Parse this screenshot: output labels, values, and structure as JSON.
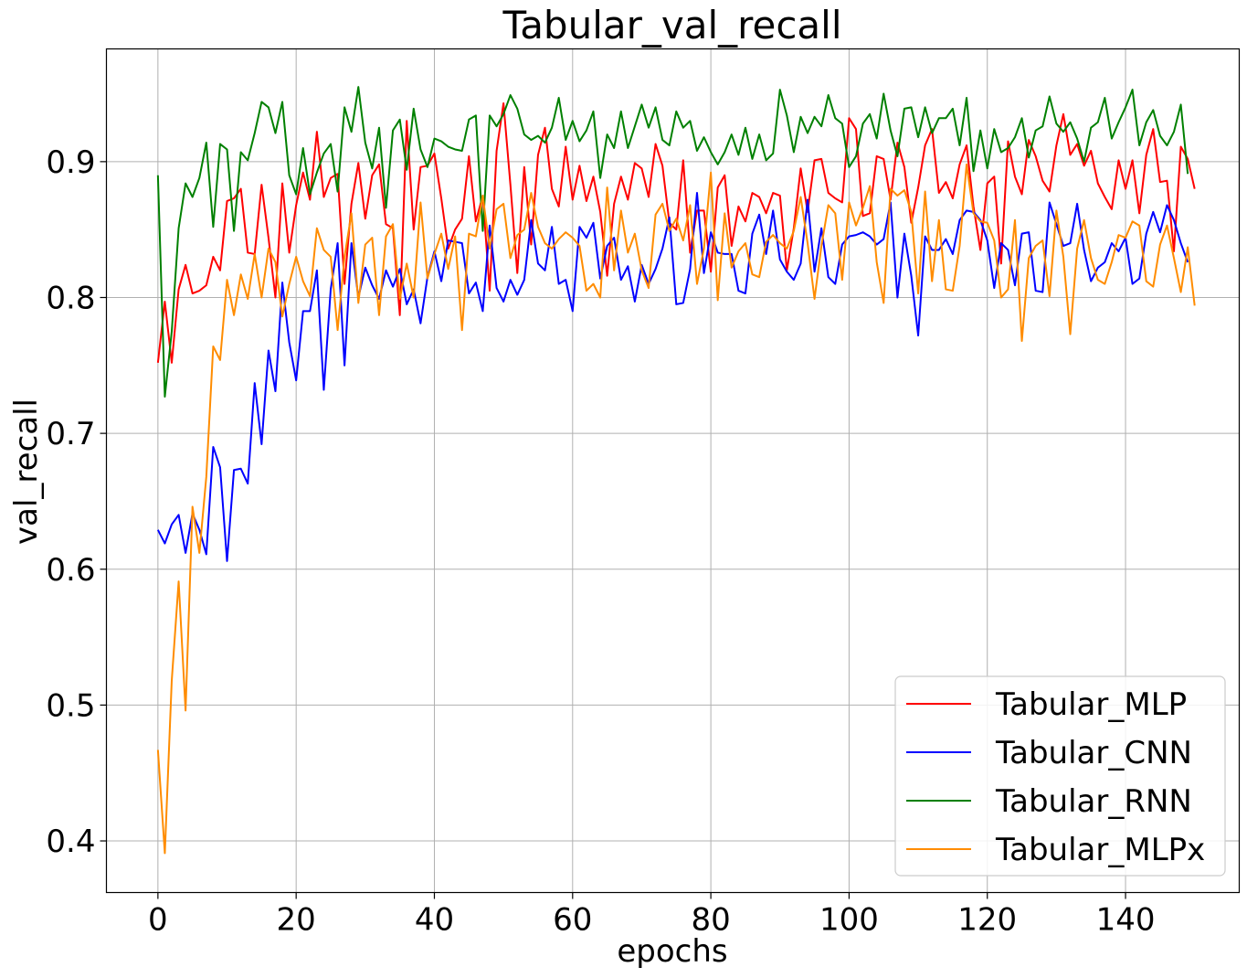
{
  "chart_data": {
    "type": "line",
    "title": "Tabular_val_recall",
    "xlabel": "epochs",
    "ylabel": "val_recall",
    "xlim": [
      -7.45,
      156.45
    ],
    "ylim": [
      0.362,
      0.983
    ],
    "xticks": [
      0,
      20,
      40,
      60,
      80,
      100,
      120,
      140
    ],
    "yticks": [
      0.4,
      0.5,
      0.6,
      0.7,
      0.8,
      0.9
    ],
    "ytick_labels": [
      "0.4",
      "0.5",
      "0.6",
      "0.7",
      "0.8",
      "0.9"
    ],
    "grid": true,
    "legend_position": "lower-right",
    "series": [
      {
        "name": "Tabular_MLP",
        "color": "#ff0000",
        "values": [
          0.752,
          0.797,
          0.752,
          0.806,
          0.824,
          0.803,
          0.805,
          0.809,
          0.83,
          0.82,
          0.871,
          0.873,
          0.88,
          0.833,
          0.832,
          0.883,
          0.844,
          0.8,
          0.884,
          0.833,
          0.868,
          0.892,
          0.872,
          0.922,
          0.874,
          0.888,
          0.891,
          0.81,
          0.869,
          0.899,
          0.858,
          0.89,
          0.898,
          0.854,
          0.851,
          0.787,
          0.93,
          0.85,
          0.896,
          0.897,
          0.906,
          0.873,
          0.836,
          0.85,
          0.858,
          0.904,
          0.856,
          0.875,
          0.805,
          0.908,
          0.943,
          0.883,
          0.818,
          0.896,
          0.839,
          0.905,
          0.925,
          0.88,
          0.867,
          0.911,
          0.872,
          0.897,
          0.871,
          0.889,
          0.863,
          0.816,
          0.869,
          0.889,
          0.872,
          0.899,
          0.895,
          0.874,
          0.913,
          0.897,
          0.855,
          0.85,
          0.901,
          0.833,
          0.864,
          0.864,
          0.819,
          0.881,
          0.89,
          0.838,
          0.867,
          0.856,
          0.877,
          0.874,
          0.862,
          0.877,
          0.875,
          0.82,
          0.851,
          0.895,
          0.863,
          0.901,
          0.902,
          0.877,
          0.873,
          0.87,
          0.932,
          0.924,
          0.86,
          0.862,
          0.904,
          0.902,
          0.872,
          0.914,
          0.896,
          0.855,
          0.881,
          0.912,
          0.924,
          0.877,
          0.885,
          0.873,
          0.898,
          0.912,
          0.867,
          0.835,
          0.884,
          0.889,
          0.825,
          0.915,
          0.889,
          0.876,
          0.916,
          0.904,
          0.886,
          0.878,
          0.912,
          0.935,
          0.905,
          0.913,
          0.897,
          0.908,
          0.884,
          0.874,
          0.865,
          0.901,
          0.88,
          0.901,
          0.862,
          0.905,
          0.924,
          0.885,
          0.886,
          0.834,
          0.911,
          0.902,
          0.88
        ]
      },
      {
        "name": "Tabular_CNN",
        "color": "#0000ff",
        "values": [
          0.629,
          0.619,
          0.633,
          0.64,
          0.612,
          0.641,
          0.629,
          0.611,
          0.69,
          0.675,
          0.606,
          0.673,
          0.674,
          0.663,
          0.737,
          0.692,
          0.761,
          0.731,
          0.811,
          0.767,
          0.739,
          0.79,
          0.79,
          0.82,
          0.732,
          0.806,
          0.84,
          0.75,
          0.84,
          0.8,
          0.822,
          0.809,
          0.799,
          0.82,
          0.808,
          0.821,
          0.795,
          0.806,
          0.781,
          0.815,
          0.834,
          0.812,
          0.842,
          0.841,
          0.84,
          0.803,
          0.811,
          0.79,
          0.853,
          0.807,
          0.797,
          0.813,
          0.802,
          0.813,
          0.857,
          0.825,
          0.82,
          0.852,
          0.81,
          0.813,
          0.79,
          0.852,
          0.844,
          0.855,
          0.814,
          0.838,
          0.844,
          0.813,
          0.823,
          0.797,
          0.824,
          0.81,
          0.821,
          0.836,
          0.859,
          0.795,
          0.796,
          0.821,
          0.877,
          0.818,
          0.848,
          0.833,
          0.832,
          0.832,
          0.805,
          0.803,
          0.847,
          0.861,
          0.832,
          0.864,
          0.828,
          0.819,
          0.813,
          0.825,
          0.872,
          0.819,
          0.851,
          0.815,
          0.81,
          0.839,
          0.845,
          0.846,
          0.848,
          0.845,
          0.839,
          0.843,
          0.87,
          0.8,
          0.847,
          0.816,
          0.772,
          0.845,
          0.835,
          0.835,
          0.843,
          0.832,
          0.857,
          0.864,
          0.863,
          0.857,
          0.842,
          0.807,
          0.84,
          0.835,
          0.809,
          0.847,
          0.848,
          0.805,
          0.804,
          0.87,
          0.854,
          0.838,
          0.84,
          0.869,
          0.835,
          0.812,
          0.822,
          0.826,
          0.84,
          0.834,
          0.844,
          0.81,
          0.814,
          0.847,
          0.863,
          0.848,
          0.868,
          0.857,
          0.84,
          0.826
        ]
      },
      {
        "name": "Tabular_RNN",
        "color": "#008000",
        "values": [
          0.89,
          0.727,
          0.775,
          0.851,
          0.884,
          0.874,
          0.888,
          0.914,
          0.852,
          0.913,
          0.909,
          0.849,
          0.907,
          0.901,
          0.921,
          0.944,
          0.94,
          0.921,
          0.944,
          0.89,
          0.876,
          0.91,
          0.876,
          0.892,
          0.906,
          0.913,
          0.878,
          0.94,
          0.922,
          0.955,
          0.914,
          0.895,
          0.925,
          0.866,
          0.923,
          0.931,
          0.894,
          0.939,
          0.909,
          0.896,
          0.917,
          0.915,
          0.911,
          0.909,
          0.908,
          0.931,
          0.934,
          0.849,
          0.934,
          0.926,
          0.935,
          0.949,
          0.939,
          0.92,
          0.916,
          0.919,
          0.914,
          0.925,
          0.947,
          0.916,
          0.93,
          0.915,
          0.923,
          0.937,
          0.888,
          0.92,
          0.91,
          0.937,
          0.91,
          0.926,
          0.942,
          0.925,
          0.94,
          0.916,
          0.912,
          0.937,
          0.925,
          0.93,
          0.908,
          0.918,
          0.907,
          0.898,
          0.907,
          0.92,
          0.905,
          0.925,
          0.902,
          0.92,
          0.901,
          0.906,
          0.953,
          0.934,
          0.907,
          0.933,
          0.921,
          0.933,
          0.926,
          0.949,
          0.932,
          0.928,
          0.896,
          0.904,
          0.928,
          0.935,
          0.917,
          0.95,
          0.923,
          0.904,
          0.939,
          0.94,
          0.918,
          0.94,
          0.921,
          0.932,
          0.932,
          0.939,
          0.912,
          0.947,
          0.893,
          0.923,
          0.895,
          0.924,
          0.907,
          0.91,
          0.918,
          0.932,
          0.903,
          0.923,
          0.926,
          0.948,
          0.928,
          0.922,
          0.929,
          0.917,
          0.9,
          0.925,
          0.929,
          0.947,
          0.917,
          0.929,
          0.94,
          0.953,
          0.912,
          0.929,
          0.938,
          0.919,
          0.912,
          0.922,
          0.942,
          0.891
        ]
      },
      {
        "name": "Tabular_MLPx",
        "color": "#ff8c00",
        "values": [
          0.467,
          0.391,
          0.518,
          0.591,
          0.496,
          0.646,
          0.612,
          0.668,
          0.764,
          0.754,
          0.813,
          0.787,
          0.817,
          0.799,
          0.832,
          0.8,
          0.836,
          0.826,
          0.786,
          0.81,
          0.83,
          0.812,
          0.801,
          0.851,
          0.835,
          0.83,
          0.776,
          0.83,
          0.862,
          0.796,
          0.839,
          0.844,
          0.787,
          0.845,
          0.854,
          0.799,
          0.825,
          0.8,
          0.87,
          0.814,
          0.832,
          0.847,
          0.821,
          0.845,
          0.776,
          0.847,
          0.845,
          0.875,
          0.836,
          0.865,
          0.869,
          0.829,
          0.846,
          0.85,
          0.877,
          0.852,
          0.84,
          0.836,
          0.843,
          0.848,
          0.844,
          0.838,
          0.805,
          0.81,
          0.8,
          0.881,
          0.82,
          0.864,
          0.833,
          0.847,
          0.82,
          0.807,
          0.861,
          0.869,
          0.849,
          0.858,
          0.842,
          0.868,
          0.81,
          0.836,
          0.892,
          0.798,
          0.862,
          0.822,
          0.834,
          0.84,
          0.817,
          0.815,
          0.841,
          0.846,
          0.84,
          0.836,
          0.849,
          0.874,
          0.84,
          0.799,
          0.838,
          0.868,
          0.862,
          0.813,
          0.87,
          0.853,
          0.866,
          0.882,
          0.826,
          0.796,
          0.88,
          0.875,
          0.879,
          0.863,
          0.803,
          0.878,
          0.812,
          0.857,
          0.806,
          0.805,
          0.838,
          0.898,
          0.862,
          0.856,
          0.855,
          0.842,
          0.8,
          0.806,
          0.857,
          0.768,
          0.829,
          0.838,
          0.842,
          0.801,
          0.864,
          0.83,
          0.773,
          0.836,
          0.857,
          0.829,
          0.813,
          0.81,
          0.826,
          0.846,
          0.844,
          0.856,
          0.853,
          0.812,
          0.808,
          0.839,
          0.853,
          0.829,
          0.804,
          0.837,
          0.794
        ]
      }
    ]
  }
}
